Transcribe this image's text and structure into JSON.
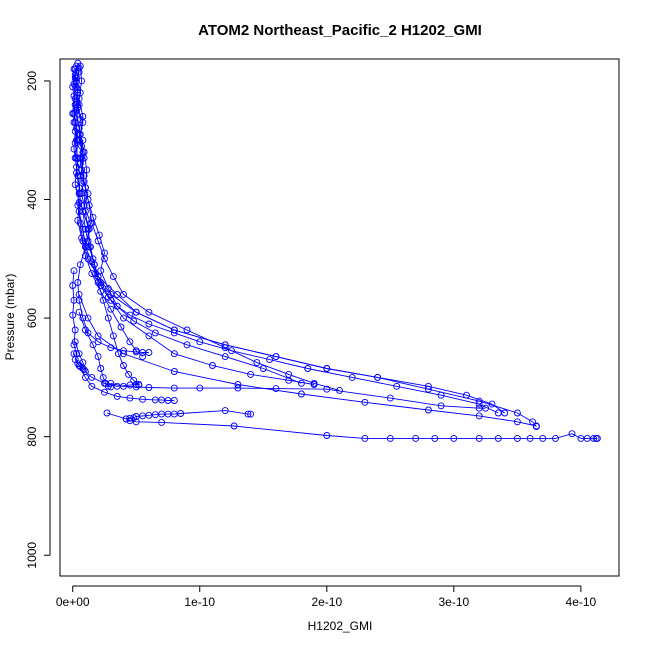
{
  "chart_data": {
    "type": "line",
    "title": "ATOM2 Northeast_Pacific_2 H1202_GMI",
    "xlabel": "H1202_GMI",
    "ylabel": "Pressure (mbar)",
    "xlim": [
      -1e-11,
      4.3e-10
    ],
    "ylim": [
      1035,
      163
    ],
    "y_reversed": true,
    "x_ticks": [
      0,
      1e-10,
      2e-10,
      3e-10,
      4e-10
    ],
    "x_tick_labels": [
      "0e+00",
      "1e-10",
      "2e-10",
      "3e-10",
      "4e-10"
    ],
    "y_ticks": [
      200,
      400,
      600,
      800,
      1000
    ],
    "y_tick_labels": [
      "200",
      "400",
      "600",
      "800",
      "1000"
    ],
    "grid": false,
    "colors": {
      "series": "#0000ff",
      "axis": "#000000"
    },
    "series": [
      {
        "x": [
          4e-12,
          5e-12,
          3e-12,
          6e-12,
          4e-12,
          8e-12,
          5e-12,
          9e-12,
          6e-12,
          1.2e-11,
          8e-12,
          1.3e-11,
          1e-11,
          1.5e-11,
          1.8e-11,
          2.2e-11,
          2.8e-11,
          3.5e-11,
          4.5e-11,
          6e-11,
          8e-11,
          1e-10,
          1.25e-10,
          1.55e-10,
          1.85e-10,
          2.2e-10,
          2.55e-10,
          2.9e-10,
          3.2e-10,
          3.35e-10
        ],
        "y": [
          170,
          185,
          200,
          220,
          245,
          270,
          300,
          330,
          360,
          390,
          420,
          450,
          480,
          505,
          525,
          545,
          565,
          580,
          595,
          610,
          625,
          640,
          655,
          670,
          685,
          700,
          715,
          730,
          745,
          760
        ]
      },
      {
        "x": [
          3e-12,
          2e-12,
          4e-12,
          3e-12,
          6e-12,
          5e-12,
          8e-12,
          7e-12,
          1e-11,
          9e-12,
          1.4e-11,
          1.2e-11,
          1.6e-11,
          2e-11,
          3e-11,
          5e-11,
          8e-11,
          1.2e-10,
          1.6e-10,
          2e-10,
          2.4e-10,
          2.8e-10,
          3.1e-10,
          3.3e-10,
          3.4e-10
        ],
        "y": [
          175,
          195,
          215,
          240,
          265,
          290,
          320,
          350,
          380,
          410,
          440,
          470,
          500,
          530,
          560,
          590,
          620,
          645,
          665,
          685,
          700,
          715,
          730,
          745,
          760
        ]
      },
      {
        "x": [
          2e-12,
          1e-12,
          2e-12,
          1e-12,
          3e-12,
          2e-12,
          4e-12,
          3e-12,
          5e-12,
          4e-12,
          6e-12,
          8e-12,
          1.2e-11,
          2e-11,
          3.5e-11,
          5e-11,
          8e-11,
          1.2e-10,
          1.6e-10,
          2e-10,
          2.4e-10,
          2.8e-10,
          3.2e-10,
          3.5e-10,
          3.62e-10,
          3.65e-10
        ],
        "y": [
          180,
          205,
          230,
          255,
          280,
          305,
          330,
          355,
          380,
          410,
          440,
          470,
          500,
          530,
          560,
          590,
          620,
          645,
          665,
          685,
          700,
          720,
          740,
          760,
          775,
          783
        ]
      },
      {
        "x": [
          6e-12,
          7e-12,
          5e-12,
          8e-12,
          6e-12,
          9e-12,
          1.1e-11,
          1e-11,
          1.3e-11,
          1.5e-11,
          2e-11,
          2.5e-11,
          3.2e-11,
          4e-11,
          6e-11,
          9e-11,
          1.2e-10,
          1.45e-10,
          1.7e-10,
          1.9e-10,
          2.1e-10
        ],
        "y": [
          175,
          200,
          230,
          260,
          290,
          320,
          350,
          380,
          410,
          440,
          470,
          500,
          530,
          560,
          590,
          620,
          650,
          675,
          695,
          710,
          722
        ]
      },
      {
        "x": [
          5e-12,
          3e-12,
          5e-12,
          2e-12,
          4e-12,
          3e-12,
          6e-12,
          5e-12,
          8e-12,
          1e-11,
          1.3e-11,
          1.7e-11,
          2.2e-11,
          3e-11,
          4e-11,
          6e-11,
          8e-11,
          1.1e-10,
          1.4e-10,
          1.7e-10,
          1.9e-10
        ],
        "y": [
          178,
          210,
          240,
          270,
          300,
          330,
          360,
          390,
          420,
          450,
          480,
          510,
          540,
          570,
          600,
          630,
          660,
          680,
          695,
          705,
          712
        ]
      },
      {
        "x": [
          1e-12,
          0,
          2e-12,
          1e-12,
          3e-12,
          2e-12,
          4e-12,
          6e-12,
          5e-12,
          8e-12,
          1e-11,
          6e-12,
          4e-12,
          5e-12,
          8e-12,
          1.2e-11,
          2e-11,
          3e-11,
          4e-11,
          5e-11,
          5.5e-11,
          6e-11
        ],
        "y": [
          180,
          210,
          240,
          270,
          300,
          330,
          360,
          390,
          420,
          450,
          480,
          510,
          540,
          570,
          600,
          625,
          640,
          650,
          655,
          657,
          658,
          658
        ]
      },
      {
        "x": [
          2e-12,
          4e-12,
          3e-12,
          5e-12,
          7e-12,
          6e-12,
          9e-12,
          1.2e-11,
          1.6e-11,
          2.1e-11,
          2.5e-11,
          2.2e-11,
          2.8e-11,
          3.5e-11,
          4.8e-11,
          6.5e-11,
          9e-11,
          1.2e-10,
          1.5e-10,
          1.8e-10
        ],
        "y": [
          190,
          220,
          250,
          280,
          310,
          340,
          370,
          400,
          430,
          460,
          490,
          520,
          550,
          580,
          605,
          625,
          645,
          665,
          685,
          710
        ]
      },
      {
        "x": [
          3e-12,
          1e-12,
          0,
          2e-12,
          1e-12,
          3e-12,
          2e-12,
          5e-12,
          4e-12,
          7e-12,
          1e-11,
          1.5e-11,
          2.2e-11,
          3e-11,
          3.8e-11,
          4.5e-11,
          5e-11,
          5.5e-11
        ],
        "y": [
          195,
          225,
          255,
          285,
          315,
          345,
          375,
          405,
          435,
          465,
          495,
          525,
          555,
          585,
          615,
          640,
          655,
          665
        ]
      },
      {
        "x": [
          8e-12,
          6e-12,
          9e-12,
          7e-12,
          1e-11,
          1.2e-11,
          1.4e-11,
          1.7e-11,
          2e-11,
          2.4e-11,
          2.8e-11,
          3.2e-11,
          3.6e-11,
          4e-11,
          4.4e-11,
          4.8e-11,
          5.2e-11
        ],
        "y": [
          300,
          330,
          360,
          390,
          420,
          450,
          480,
          510,
          540,
          570,
          600,
          630,
          660,
          680,
          695,
          705,
          712
        ]
      },
      {
        "x": [
          1e-12,
          0,
          1e-12,
          0,
          2e-12,
          1e-12,
          3e-12,
          2e-12,
          4e-12,
          6e-12,
          8e-12,
          9e-12
        ],
        "y": [
          520,
          545,
          570,
          595,
          620,
          645,
          660,
          670,
          677,
          682,
          685,
          687
        ]
      },
      {
        "x": [
          5e-12,
          1e-11,
          1.6e-11,
          2e-11,
          2.2e-11,
          2.4e-11,
          2.6e-11,
          2.8e-11,
          3e-11
        ],
        "y": [
          590,
          620,
          645,
          665,
          685,
          700,
          710,
          715,
          716
        ]
      },
      {
        "x": [
          2e-12,
          5e-12,
          8e-12,
          1e-11,
          1.5e-11,
          2.5e-11,
          3.5e-11,
          4.5e-11,
          5e-11,
          5.2e-11
        ],
        "y": [
          640,
          660,
          675,
          690,
          700,
          710,
          715,
          713,
          712,
          713
        ]
      },
      {
        "x": [
          1e-12,
          5e-12,
          1e-11,
          1.5e-11,
          2.5e-11,
          3.5e-11,
          4.5e-11,
          5.5e-11,
          6.5e-11,
          7e-11,
          7.5e-11,
          8e-11
        ],
        "y": [
          660,
          680,
          700,
          715,
          725,
          732,
          735,
          737,
          738,
          738,
          739,
          739
        ]
      },
      {
        "x": [
          4.2e-11,
          4.5e-11,
          4.8e-11,
          5e-11,
          5.5e-11,
          6e-11,
          6.5e-11,
          7e-11,
          7.5e-11,
          8e-11,
          8.5e-11,
          1.2e-10,
          1.38e-10,
          1.4e-10
        ],
        "y": [
          770,
          769,
          768,
          766,
          765,
          764,
          763,
          762,
          762,
          762,
          761,
          756,
          762,
          762
        ]
      },
      {
        "x": [
          2.7e-11,
          4.2e-11,
          4.5e-11,
          5e-11,
          7e-11,
          1.27e-10,
          2e-10,
          2.3e-10,
          2.5e-10,
          2.7e-10,
          2.85e-10,
          3e-10,
          3.2e-10,
          3.35e-10,
          3.5e-10,
          3.6e-10,
          3.7e-10,
          3.8e-10,
          3.93e-10,
          4e-10,
          4.05e-10,
          4.1e-10,
          4.12e-10,
          4.13e-10
        ],
        "y": [
          760,
          770,
          773,
          775,
          776,
          782,
          798,
          803,
          803,
          803,
          803,
          803,
          803,
          803,
          803,
          803,
          803,
          803,
          795,
          803,
          803,
          803,
          803,
          803
        ]
      },
      {
        "x": [
          5e-12,
          1.2e-11,
          2e-11,
          4e-11,
          8e-11,
          1.3e-10,
          1.8e-10,
          2.3e-10,
          2.8e-10,
          3.2e-10,
          3.5e-10,
          3.65e-10
        ],
        "y": [
          560,
          600,
          630,
          660,
          690,
          712,
          728,
          742,
          755,
          765,
          775,
          782
        ]
      },
      {
        "x": [
          3e-11,
          4e-11,
          5e-11,
          6e-11,
          8e-11,
          1e-10,
          1.3e-10,
          1.6e-10,
          2e-10,
          2.5e-10,
          2.9e-10,
          3.2e-10,
          3.25e-10
        ],
        "y": [
          710,
          715,
          716,
          717,
          718,
          718,
          718,
          719,
          720,
          735,
          748,
          752,
          752
        ]
      }
    ]
  }
}
